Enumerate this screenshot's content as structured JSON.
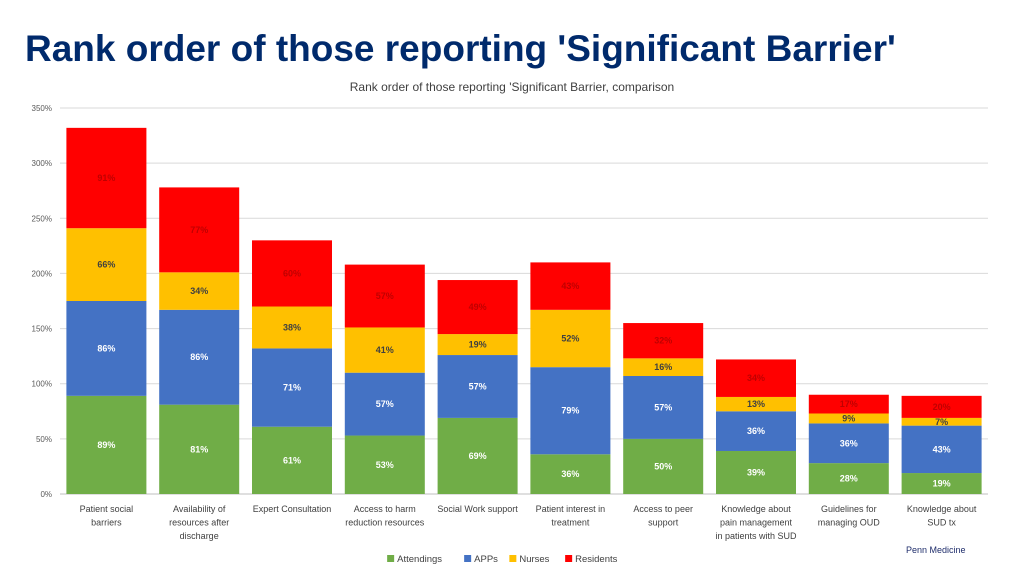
{
  "page": {
    "title": "Rank order of those reporting 'Significant Barrier'",
    "footer": "Penn Medicine"
  },
  "colors": {
    "Attendings": "#70ad47",
    "APPs": "#4472c4",
    "Nurses": "#ffc000",
    "Residents": "#ff0000"
  },
  "chart_data": {
    "type": "bar",
    "stacked": true,
    "title": "Rank order of those reporting 'Significant Barrier, comparison",
    "xlabel": "",
    "ylabel": "",
    "ylim": [
      0,
      350
    ],
    "yticks": [
      "0%",
      "50%",
      "100%",
      "150%",
      "200%",
      "250%",
      "300%",
      "350%"
    ],
    "grid": true,
    "legend": "bottom",
    "categories": [
      [
        "Patient social",
        "barriers"
      ],
      [
        "Availability of",
        "resources after",
        "discharge"
      ],
      [
        "Expert Consultation"
      ],
      [
        "Access to harm",
        "reduction resources"
      ],
      [
        "Social Work support"
      ],
      [
        "Patient interest in",
        "treatment"
      ],
      [
        "Access to peer",
        "support"
      ],
      [
        "Knowledge about",
        "pain management",
        "in patients with SUD"
      ],
      [
        "Guidelines for",
        "managing OUD"
      ],
      [
        "Knowledge about",
        "SUD tx"
      ]
    ],
    "series": [
      {
        "name": "Attendings",
        "values": [
          89,
          81,
          61,
          53,
          69,
          36,
          50,
          39,
          28,
          19
        ],
        "labels": [
          "89%",
          "81%",
          "61%",
          "53%",
          "69%",
          "36%",
          "50%",
          "39%",
          "28%",
          "19%"
        ]
      },
      {
        "name": "APPs",
        "values": [
          86,
          86,
          71,
          57,
          57,
          79,
          57,
          36,
          36,
          43
        ],
        "labels": [
          "86%",
          "86%",
          "71%",
          "57%",
          "57%",
          "79%",
          "57%",
          "36%",
          "36%",
          "43%"
        ]
      },
      {
        "name": "Nurses",
        "values": [
          66,
          34,
          38,
          41,
          19,
          52,
          16,
          13,
          9,
          7
        ],
        "labels": [
          "66%",
          "34%",
          "38%",
          "41%",
          "19%",
          "52%",
          "16%",
          "13%",
          "9%",
          "7%"
        ]
      },
      {
        "name": "Residents",
        "values": [
          91,
          77,
          60,
          57,
          49,
          43,
          32,
          34,
          17,
          20
        ],
        "labels": [
          "91%",
          "77%",
          "60%",
          "57%",
          "49%",
          "43%",
          "32%",
          "34%",
          "17%",
          "20%"
        ]
      }
    ]
  }
}
